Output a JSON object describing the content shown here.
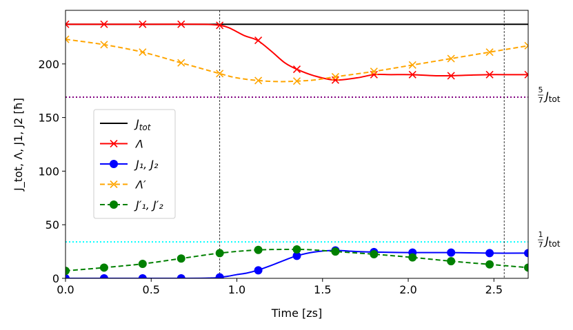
{
  "chart_data": {
    "type": "line",
    "title": "",
    "xlabel": "Time [zs]",
    "ylabel": "J_tot, Λ, J1, J2 [ħ]",
    "xlim": [
      0.0,
      2.7
    ],
    "ylim": [
      0,
      250
    ],
    "xticks": [
      0.0,
      0.5,
      1.0,
      1.5,
      2.0,
      2.5
    ],
    "xtick_labels": [
      "0.0",
      "0.5",
      "1.0",
      "1.5",
      "2.0",
      "2.5"
    ],
    "yticks": [
      0,
      50,
      100,
      150,
      200
    ],
    "ytick_labels": [
      "0",
      "50",
      "100",
      "150",
      "200"
    ],
    "legend_position": "center-left",
    "series": [
      {
        "name": "J_tot",
        "label_main": "J",
        "label_sub": "tot",
        "color": "#000000",
        "style": "solid",
        "marker": "none",
        "x": [
          0.0,
          2.7
        ],
        "y": [
          237,
          237
        ]
      },
      {
        "name": "Λ",
        "label_main": "Λ",
        "label_sub": "",
        "color": "#ff0000",
        "style": "solid",
        "marker": "x",
        "x": [
          0.0,
          0.5,
          0.8,
          0.9,
          0.95,
          1.0,
          1.05,
          1.12,
          1.2,
          1.28,
          1.35,
          1.45,
          1.57,
          1.7,
          1.8,
          1.9,
          2.02,
          2.15,
          2.25,
          2.35,
          2.47,
          2.6,
          2.7
        ],
        "y": [
          237,
          237,
          237,
          236,
          234,
          230,
          226,
          222,
          212,
          201,
          195,
          189,
          185,
          187,
          190,
          190,
          190,
          189,
          189,
          189.5,
          190,
          190,
          190
        ],
        "marker_x": [
          0.0,
          0.225,
          0.45,
          0.675,
          0.9,
          1.125,
          1.35,
          1.575,
          1.8,
          2.025,
          2.25,
          2.475,
          2.7
        ],
        "marker_y": [
          237,
          237,
          237,
          237,
          236,
          222,
          195,
          185,
          190,
          190,
          189,
          190,
          190
        ]
      },
      {
        "name": "J1, J2",
        "label_main": "J₁, J₂",
        "label_sub": "",
        "color": "#0000ff",
        "style": "solid",
        "marker": "circle",
        "x": [
          0.0,
          0.7,
          0.85,
          0.9,
          0.95,
          1.0,
          1.06,
          1.12,
          1.2,
          1.28,
          1.35,
          1.45,
          1.57,
          1.7,
          1.8,
          2.02,
          2.25,
          2.47,
          2.7
        ],
        "y": [
          0,
          0,
          0.3,
          1,
          2,
          3.5,
          5,
          7.5,
          12,
          17,
          21,
          24.5,
          26,
          25,
          24.5,
          24,
          24,
          23.5,
          23.5
        ],
        "marker_x": [
          0.0,
          0.225,
          0.45,
          0.675,
          0.9,
          1.125,
          1.35,
          1.575,
          1.8,
          2.025,
          2.25,
          2.475,
          2.7
        ],
        "marker_y": [
          0,
          0,
          0,
          0,
          1,
          7.5,
          21,
          26,
          24.5,
          24,
          24,
          23.5,
          23.5
        ]
      },
      {
        "name": "Λ'",
        "label_main": "Λ′",
        "label_sub": "",
        "color": "#ffa500",
        "style": "dashed",
        "marker": "x",
        "x": [
          0.0,
          0.225,
          0.45,
          0.675,
          0.9,
          1.0,
          1.125,
          1.25,
          1.35,
          1.45,
          1.575,
          1.8,
          2.025,
          2.25,
          2.475,
          2.7
        ],
        "y": [
          223,
          218,
          211,
          201,
          191,
          187,
          184.5,
          183.5,
          184,
          185,
          188,
          193,
          199,
          205,
          211,
          217
        ],
        "marker_x": [
          0.0,
          0.225,
          0.45,
          0.675,
          0.9,
          1.125,
          1.35,
          1.575,
          1.8,
          2.025,
          2.25,
          2.475,
          2.7
        ],
        "marker_y": [
          223,
          218,
          211,
          201,
          191,
          184.5,
          184,
          188,
          193,
          199,
          205,
          211,
          217
        ]
      },
      {
        "name": "J1', J2'",
        "label_main": "J′₁, J′₂",
        "label_sub": "",
        "color": "#008000",
        "style": "dashed",
        "marker": "circle",
        "x": [
          0.0,
          0.225,
          0.45,
          0.675,
          0.9,
          1.125,
          1.35,
          1.45,
          1.575,
          1.8,
          2.025,
          2.25,
          2.475,
          2.7
        ],
        "y": [
          7,
          10,
          13.5,
          18.5,
          23.5,
          26.5,
          27,
          26.5,
          25,
          22.5,
          19.5,
          16,
          13,
          10
        ],
        "marker_x": [
          0.0,
          0.225,
          0.45,
          0.675,
          0.9,
          1.125,
          1.35,
          1.575,
          1.8,
          2.025,
          2.25,
          2.475,
          2.7
        ],
        "marker_y": [
          7,
          10,
          13.5,
          18.5,
          23.5,
          26.5,
          27,
          25,
          22.5,
          19.5,
          16,
          13,
          10
        ]
      }
    ],
    "reference_lines": [
      {
        "name": "five-sevenths",
        "y": 169,
        "color": "#800080",
        "style": "dotted",
        "label_num": "5",
        "label_den": "7",
        "label_main": "J",
        "label_sub": "tot"
      },
      {
        "name": "one-seventh",
        "y": 34,
        "color": "#00ffff",
        "style": "dotted",
        "label_num": "1",
        "label_den": "7",
        "label_main": "J",
        "label_sub": "tot"
      }
    ],
    "vertical_lines": [
      {
        "x": 0.9,
        "color": "#000000",
        "style": "dashed"
      },
      {
        "x": 2.56,
        "color": "#000000",
        "style": "dashed"
      }
    ]
  }
}
